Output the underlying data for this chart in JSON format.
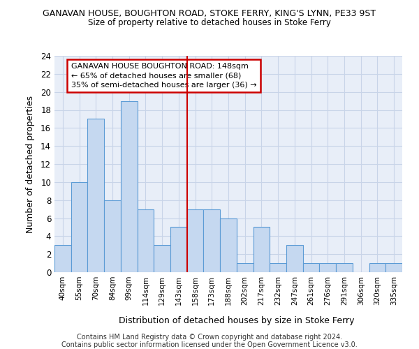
{
  "title": "GANAVAN HOUSE, BOUGHTON ROAD, STOKE FERRY, KING'S LYNN, PE33 9ST",
  "subtitle": "Size of property relative to detached houses in Stoke Ferry",
  "xlabel": "Distribution of detached houses by size in Stoke Ferry",
  "ylabel": "Number of detached properties",
  "bar_labels": [
    "40sqm",
    "55sqm",
    "70sqm",
    "84sqm",
    "99sqm",
    "114sqm",
    "129sqm",
    "143sqm",
    "158sqm",
    "173sqm",
    "188sqm",
    "202sqm",
    "217sqm",
    "232sqm",
    "247sqm",
    "261sqm",
    "276sqm",
    "291sqm",
    "306sqm",
    "320sqm",
    "335sqm"
  ],
  "bar_values": [
    3,
    10,
    17,
    8,
    19,
    7,
    3,
    5,
    7,
    7,
    6,
    1,
    5,
    1,
    3,
    1,
    1,
    1,
    0,
    1,
    1
  ],
  "bar_color": "#c5d8f0",
  "bar_edge_color": "#5b9bd5",
  "vline_index": 7,
  "vline_color": "#cc0000",
  "annotation_text": "GANAVAN HOUSE BOUGHTON ROAD: 148sqm\n← 65% of detached houses are smaller (68)\n35% of semi-detached houses are larger (36) →",
  "annotation_box_color": "#ffffff",
  "annotation_box_edge": "#cc0000",
  "ylim": [
    0,
    24
  ],
  "yticks": [
    0,
    2,
    4,
    6,
    8,
    10,
    12,
    14,
    16,
    18,
    20,
    22,
    24
  ],
  "grid_color": "#c8d4e8",
  "bg_color": "#e8eef8",
  "footer1": "Contains HM Land Registry data © Crown copyright and database right 2024.",
  "footer2": "Contains public sector information licensed under the Open Government Licence v3.0."
}
